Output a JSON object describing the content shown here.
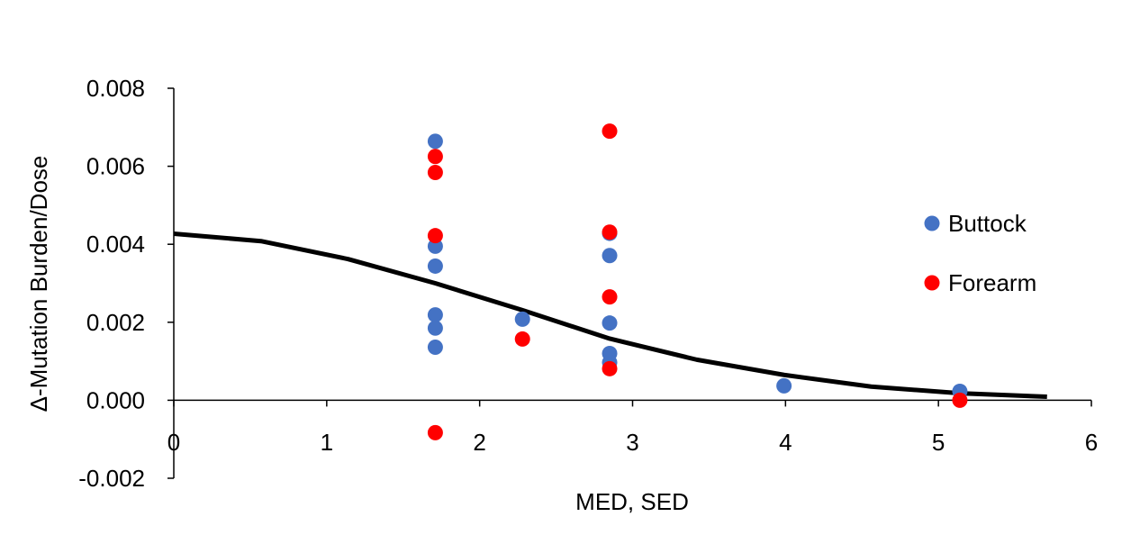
{
  "chart_data": {
    "type": "scatter",
    "title": "",
    "xlabel": "MED, SED",
    "ylabel": "Δ-Mutation Burden/Dose",
    "xlim": [
      0,
      6
    ],
    "ylim": [
      -0.002,
      0.008
    ],
    "x_ticks": [
      "0",
      "1",
      "2",
      "3",
      "4",
      "5",
      "6"
    ],
    "y_ticks": [
      "-0.002",
      "0.000",
      "0.002",
      "0.004",
      "0.006",
      "0.008"
    ],
    "grid": false,
    "legend_position": "right",
    "series": [
      {
        "name": "Buttock",
        "color": "#4472C4",
        "points": [
          [
            1.71,
            0.00664
          ],
          [
            1.71,
            0.00395
          ],
          [
            1.71,
            0.00344
          ],
          [
            1.71,
            0.00219
          ],
          [
            1.71,
            0.00185
          ],
          [
            1.71,
            0.00136
          ],
          [
            2.28,
            0.00208
          ],
          [
            2.85,
            0.00428
          ],
          [
            2.85,
            0.00371
          ],
          [
            2.85,
            0.00198
          ],
          [
            2.85,
            0.0012
          ],
          [
            2.85,
            0.00097
          ],
          [
            3.99,
            0.00037
          ],
          [
            5.14,
            0.00023
          ]
        ]
      },
      {
        "name": "Forearm",
        "color": "#FF0000",
        "points": [
          [
            1.71,
            0.00625
          ],
          [
            1.71,
            0.00584
          ],
          [
            1.71,
            0.00422
          ],
          [
            1.71,
            -0.00083
          ],
          [
            2.28,
            0.00157
          ],
          [
            2.85,
            0.0069
          ],
          [
            2.85,
            0.00431
          ],
          [
            2.85,
            0.00265
          ],
          [
            2.85,
            0.00081
          ],
          [
            5.14,
            0.0
          ]
        ]
      }
    ],
    "curve": {
      "color": "#000000",
      "points": [
        [
          0,
          0.00427
        ],
        [
          0.57,
          0.00408
        ],
        [
          1.14,
          0.00362
        ],
        [
          1.71,
          0.003
        ],
        [
          2.28,
          0.00231
        ],
        [
          2.85,
          0.00158
        ],
        [
          3.42,
          0.00104
        ],
        [
          3.99,
          0.00065
        ],
        [
          4.56,
          0.00035
        ],
        [
          5.14,
          0.00018
        ],
        [
          5.71,
          9e-05
        ]
      ]
    }
  }
}
